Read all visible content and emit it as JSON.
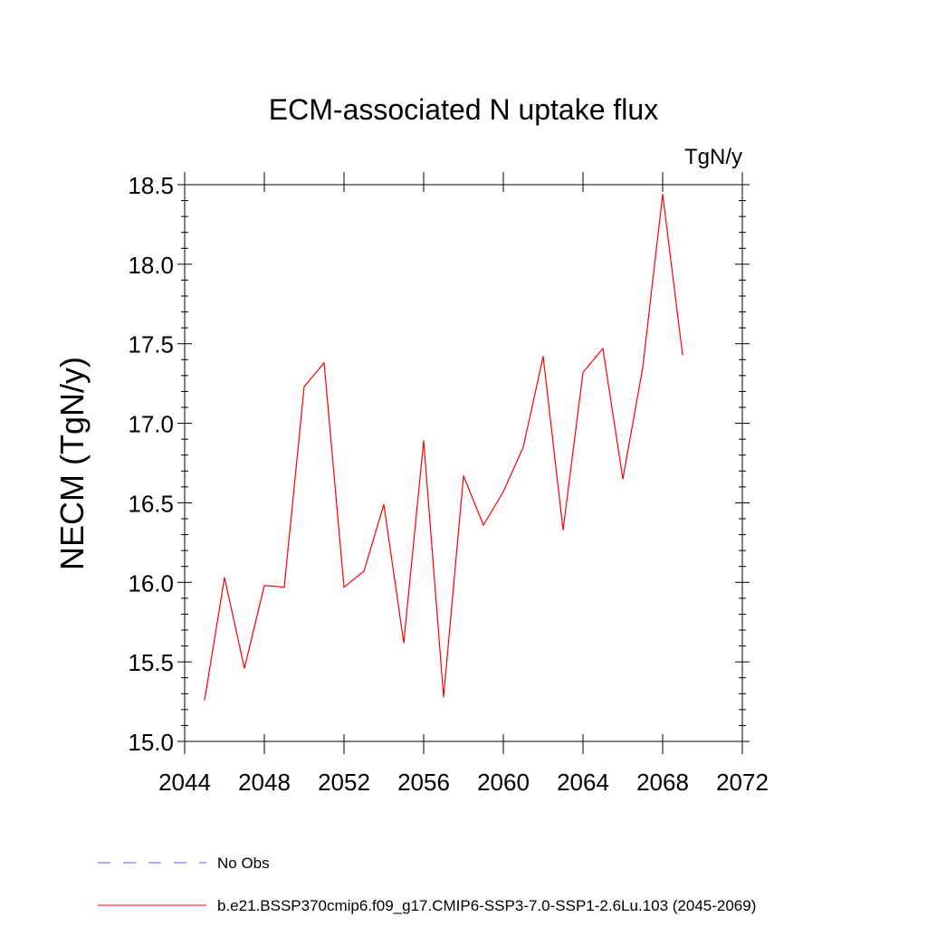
{
  "chart_data": {
    "type": "line",
    "title": "ECM-associated N uptake flux",
    "units": "TgN/y",
    "ylabel": "NECM  (TgN/y)",
    "xlabel": "",
    "xlim": [
      2044,
      2072
    ],
    "ylim": [
      15.0,
      18.5
    ],
    "x_ticks": [
      2044,
      2048,
      2052,
      2056,
      2060,
      2064,
      2068,
      2072
    ],
    "x_tick_labels": [
      "2044",
      "2048",
      "2052",
      "2056",
      "2060",
      "2064",
      "2068",
      "2072"
    ],
    "y_ticks": [
      15.0,
      15.5,
      16.0,
      16.5,
      17.0,
      17.5,
      18.0,
      18.5
    ],
    "y_tick_labels": [
      "15.0",
      "15.5",
      "16.0",
      "16.5",
      "17.0",
      "17.5",
      "18.0",
      "18.5"
    ],
    "grid": false,
    "legend_position": "bottom-left",
    "series": [
      {
        "name": "b.e21.BSSP370cmip6.f09_g17.CMIP6-SSP3-7.0-SSP1-2.6Lu.103 (2045-2069)",
        "color": "#ff0000",
        "style": "solid",
        "x": [
          2045,
          2046,
          2047,
          2048,
          2049,
          2050,
          2051,
          2052,
          2053,
          2054,
          2055,
          2056,
          2057,
          2058,
          2059,
          2060,
          2061,
          2062,
          2063,
          2064,
          2065,
          2066,
          2067,
          2068,
          2069
        ],
        "values": [
          15.26,
          16.03,
          15.46,
          15.98,
          15.97,
          17.23,
          17.38,
          15.97,
          16.07,
          16.49,
          15.62,
          16.89,
          15.28,
          16.67,
          16.36,
          16.57,
          16.85,
          17.42,
          16.33,
          17.32,
          17.47,
          16.65,
          17.35,
          18.44,
          17.43
        ]
      }
    ],
    "legend": [
      {
        "label": "No Obs",
        "color": "#6a5acd",
        "style": "dashed"
      },
      {
        "label": "b.e21.BSSP370cmip6.f09_g17.CMIP6-SSP3-7.0-SSP1-2.6Lu.103 (2045-2069)",
        "color": "#ff0000",
        "style": "solid"
      }
    ]
  }
}
